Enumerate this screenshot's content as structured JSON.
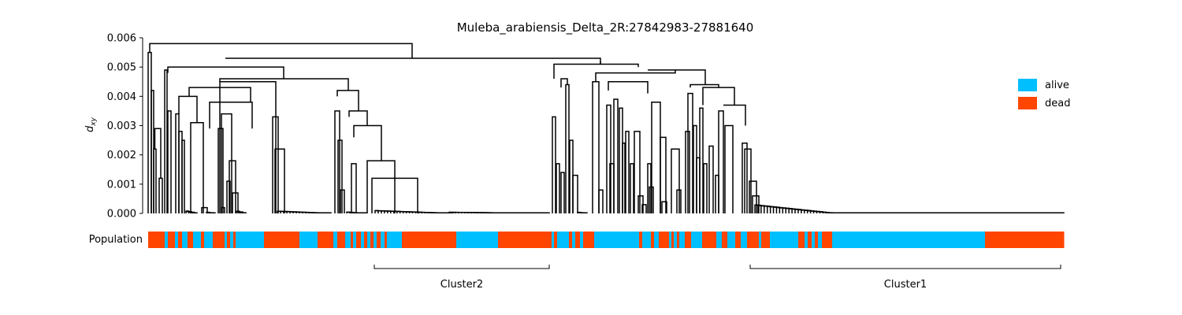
{
  "chart_data": {
    "type": "dendrogram",
    "title": "Muleba_arabiensis_Delta_2R:27842983-27881640",
    "ylabel": "d",
    "ylabel_sub": "xy",
    "ylim": [
      0,
      0.006
    ],
    "yticks": [
      "0.000",
      "0.001",
      "0.002",
      "0.003",
      "0.004",
      "0.005",
      "0.006"
    ],
    "ytick_values": [
      0,
      0.001,
      0.002,
      0.003,
      0.004,
      0.005,
      0.006
    ],
    "population_label": "Population",
    "legend": [
      {
        "label": "alive",
        "color": "#00bfff"
      },
      {
        "label": "dead",
        "color": "#ff4500"
      }
    ],
    "clusters": [
      {
        "label": "Cluster2"
      },
      {
        "label": "Cluster1"
      }
    ]
  }
}
